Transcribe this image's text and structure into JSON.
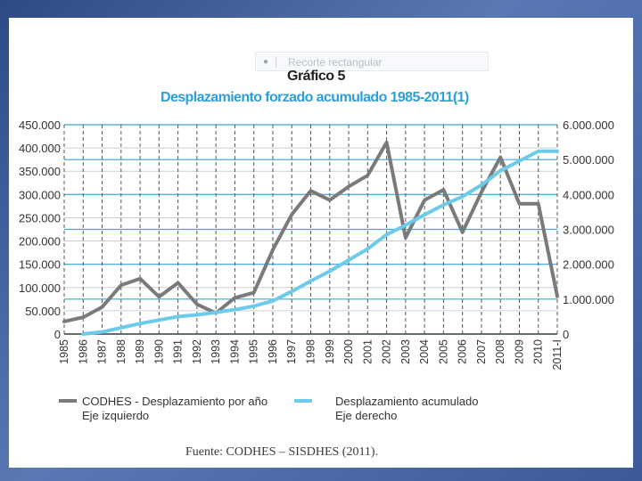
{
  "snip_tool": {
    "text": "Recorte rectangular"
  },
  "chart_label": "Gráfico 5",
  "source": "Fuente: CODHES – SISDHES (2011).",
  "colors": {
    "series_yearly": "#7a7a7a",
    "series_cumulative": "#6ccbea",
    "grid_cyan": "#37a9dc",
    "title": "#2d9fd8"
  },
  "chart_data": {
    "type": "line",
    "title": "Desplazamiento forzado acumulado 1985-2011(1)",
    "categories": [
      "1985",
      "1986",
      "1987",
      "1988",
      "1989",
      "1990",
      "1991",
      "1992",
      "1993",
      "1994",
      "1995",
      "1996",
      "1997",
      "1998",
      "1999",
      "2000",
      "2001",
      "2002",
      "2003",
      "2004",
      "2005",
      "2006",
      "2007",
      "2008",
      "2009",
      "2010",
      "2011-I"
    ],
    "left_axis": {
      "range": [
        0,
        450000
      ],
      "ticks": [
        0,
        50000,
        100000,
        150000,
        200000,
        250000,
        300000,
        350000,
        400000,
        450000
      ],
      "tick_labels": [
        "0",
        "50.000",
        "100.000",
        "150.000",
        "200.000",
        "250.000",
        "300.000",
        "350.000",
        "400.000",
        "450.000"
      ]
    },
    "right_axis": {
      "range": [
        0,
        6000000
      ],
      "ticks": [
        0,
        1000000,
        2000000,
        3000000,
        4000000,
        5000000,
        6000000
      ],
      "tick_labels": [
        "0",
        "1.000.000",
        "2.000.000",
        "3.000.000",
        "4.000.000",
        "5.000.000",
        "6.000.000"
      ]
    },
    "series": [
      {
        "name": "CODHES - Desplazamiento por año",
        "axis_note": "Eje izquierdo",
        "axis": "left",
        "values": [
          27000,
          36000,
          58000,
          105000,
          119000,
          80000,
          110000,
          64000,
          45000,
          78000,
          89000,
          181000,
          257000,
          308000,
          288000,
          317000,
          341000,
          412000,
          207000,
          288000,
          310000,
          219000,
          305000,
          380000,
          280000,
          280000,
          81000
        ]
      },
      {
        "name": "Desplazamiento acumulado",
        "axis_note": "Eje derecho",
        "axis": "right",
        "values": [
          null,
          0,
          60000,
          180000,
          300000,
          400000,
          500000,
          550000,
          620000,
          700000,
          800000,
          950000,
          1220000,
          1520000,
          1800000,
          2120000,
          2440000,
          2850000,
          3120000,
          3420000,
          3700000,
          3940000,
          4270000,
          4680000,
          4960000,
          5240000,
          5240000
        ]
      }
    ]
  }
}
